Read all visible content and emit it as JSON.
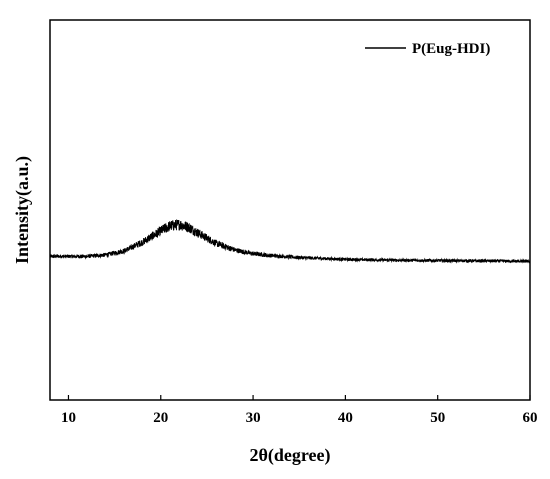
{
  "chart_data": {
    "type": "line",
    "title": "",
    "xlabel": "2θ(degree)",
    "ylabel": "Intensity(a.u.)",
    "xlim": [
      8,
      60
    ],
    "ylim": [
      0,
      1
    ],
    "x_ticks": [
      10,
      20,
      30,
      40,
      50,
      60
    ],
    "y_ticks": [],
    "grid": false,
    "legend_position": "top-right",
    "series": [
      {
        "name": "P(Eug-HDI)",
        "color": "#000000",
        "x": [
          8,
          10,
          12,
          14,
          16,
          18,
          20,
          21,
          22,
          23,
          24,
          26,
          28,
          30,
          32,
          35,
          40,
          45,
          50,
          55,
          60
        ],
        "y": [
          0.378,
          0.378,
          0.378,
          0.382,
          0.392,
          0.415,
          0.445,
          0.458,
          0.462,
          0.455,
          0.44,
          0.412,
          0.395,
          0.385,
          0.38,
          0.375,
          0.37,
          0.368,
          0.367,
          0.366,
          0.365
        ]
      }
    ]
  }
}
